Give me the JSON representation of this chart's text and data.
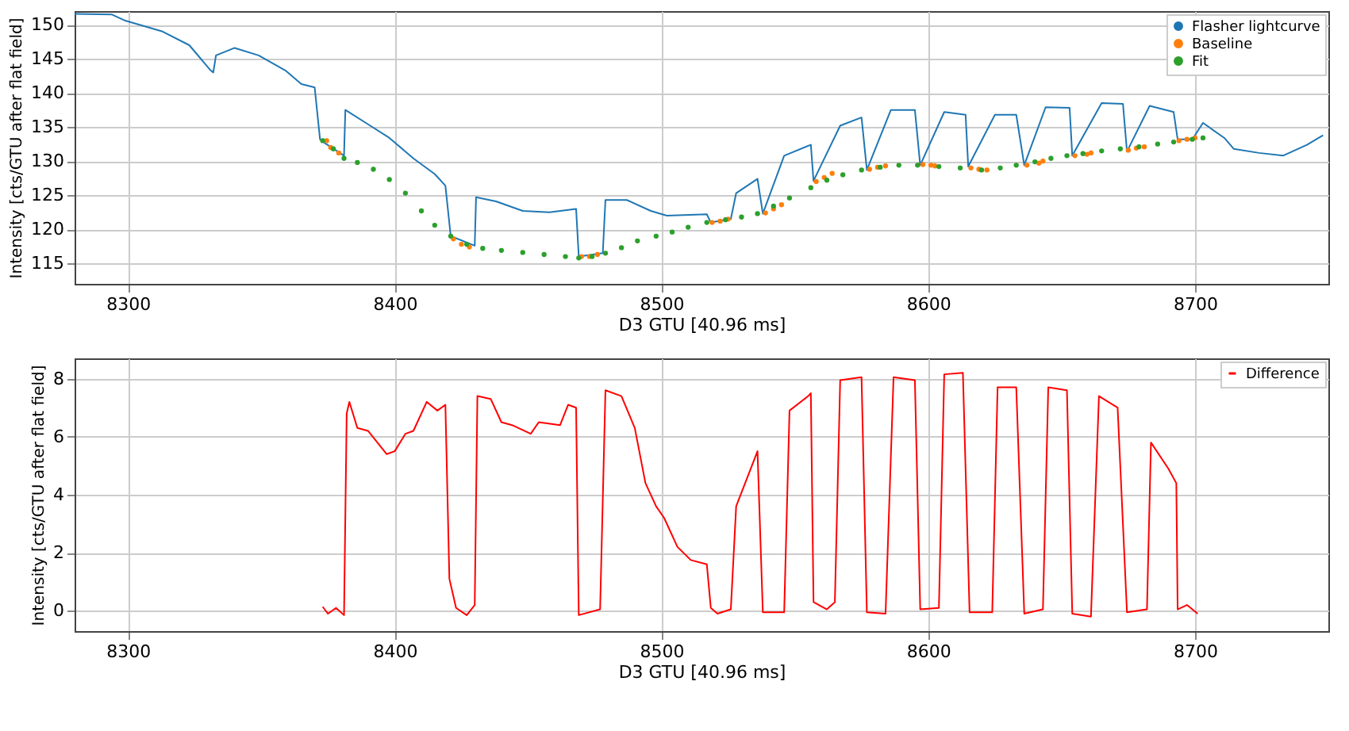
{
  "chart_data": [
    {
      "type": "line",
      "xlabel": "D3 GTU [40.96 ms]",
      "ylabel": "Intensity [cts/GTU after flat field]",
      "xlim": [
        8280,
        8750
      ],
      "ylim": [
        112,
        152
      ],
      "xticks": [
        8300,
        8400,
        8500,
        8600,
        8700
      ],
      "yticks": [
        115,
        120,
        125,
        130,
        135,
        140,
        145,
        150
      ],
      "grid": true,
      "legend": "top right",
      "series": [
        {
          "name": "Flasher lightcurve",
          "color": "#1f77b4",
          "x": [
            8280,
            8294,
            8299,
            8313,
            8323,
            8331,
            8332,
            8333,
            8340,
            8349,
            8359,
            8365,
            8370,
            8372,
            8374,
            8381,
            8381.5,
            8390,
            8398,
            8407,
            8415,
            8419,
            8421,
            8430,
            8430.5,
            8438,
            8448,
            8458,
            8468,
            8469,
            8478,
            8479,
            8487,
            8496,
            8502,
            8517,
            8518.5,
            8526,
            8528,
            8536,
            8538,
            8546,
            8556,
            8557,
            8567,
            8575,
            8577,
            8586,
            8595,
            8597,
            8606,
            8614,
            8615,
            8625,
            8633,
            8636,
            8644,
            8653,
            8654,
            8665,
            8673,
            8674.5,
            8683,
            8692,
            8693.5,
            8699,
            8703,
            8711,
            8714.5,
            8724,
            8733,
            8742,
            8748
          ],
          "values": [
            151.6,
            151.5,
            150.6,
            149,
            147,
            143.3,
            143,
            145.5,
            146.6,
            145.5,
            143.3,
            141.3,
            140.8,
            133.2,
            132.6,
            130.8,
            137.5,
            135.4,
            133.4,
            130.4,
            128.1,
            126.4,
            119,
            117.6,
            124.7,
            124.1,
            122.7,
            122.5,
            123,
            116,
            116.5,
            124.3,
            124.3,
            122.7,
            122,
            122.2,
            121,
            121.5,
            125.3,
            127.4,
            122.3,
            130.8,
            132.4,
            127.1,
            135.2,
            136.4,
            128.7,
            137.5,
            137.5,
            129.4,
            137.2,
            136.8,
            129.2,
            136.8,
            136.8,
            129.4,
            137.9,
            137.8,
            130.8,
            138.5,
            138.4,
            131.4,
            138.1,
            137.2,
            133.2,
            133.2,
            135.6,
            133.4,
            131.8,
            131.2,
            130.8,
            132.4,
            133.8
          ]
        },
        {
          "name": "Baseline",
          "type": "scatter",
          "color": "#ff7f0e",
          "marker": "circle",
          "x": [
            8374.5,
            8376,
            8379,
            8422,
            8425,
            8428,
            8470,
            8473,
            8476,
            8519,
            8522,
            8525,
            8539,
            8542,
            8545,
            8558,
            8561,
            8564,
            8578,
            8581,
            8584,
            8598,
            8601,
            8602.5,
            8616,
            8619,
            8622,
            8637,
            8641.5,
            8643,
            8655,
            8659.5,
            8661,
            8675,
            8678,
            8681,
            8694,
            8697,
            8700
          ],
          "values": [
            133,
            132,
            131.2,
            118.6,
            117.8,
            117.4,
            116,
            116,
            116.3,
            121,
            121.2,
            121.5,
            122.4,
            123,
            123.6,
            127,
            127.6,
            128.2,
            128.8,
            129.1,
            129.3,
            129.5,
            129.4,
            129.3,
            129,
            128.8,
            128.7,
            129.4,
            129.7,
            130,
            130.8,
            131,
            131.2,
            131.6,
            131.9,
            132.1,
            133,
            133.2,
            133.4
          ]
        },
        {
          "name": "Fit",
          "type": "scatter",
          "color": "#2ca02c",
          "marker": "circle",
          "x": [
            8373,
            8377,
            8381,
            8386,
            8392,
            8398,
            8404,
            8410,
            8415,
            8421,
            8427,
            8433,
            8440,
            8448,
            8456,
            8464,
            8469,
            8474,
            8479,
            8485,
            8491,
            8498,
            8504,
            8510,
            8517,
            8524,
            8530,
            8536,
            8542,
            8548,
            8556,
            8562,
            8568,
            8575,
            8582,
            8589,
            8596,
            8604,
            8612,
            8620,
            8627,
            8633,
            8640,
            8646,
            8652,
            8658,
            8665,
            8672,
            8679,
            8686,
            8692,
            8699,
            8703
          ],
          "values": [
            133,
            131.8,
            130.4,
            129.8,
            128.8,
            127.3,
            125.3,
            122.7,
            120.6,
            119,
            117.8,
            117.2,
            116.9,
            116.6,
            116.3,
            116,
            115.8,
            116,
            116.5,
            117.3,
            118.3,
            119,
            119.6,
            120.3,
            121,
            121.4,
            121.8,
            122.3,
            123.4,
            124.6,
            126.1,
            127.2,
            128,
            128.7,
            129.1,
            129.4,
            129.4,
            129.2,
            129,
            128.7,
            129,
            129.4,
            129.9,
            130.4,
            130.8,
            131.1,
            131.5,
            131.8,
            132.1,
            132.5,
            132.8,
            133.2,
            133.4
          ]
        }
      ]
    },
    {
      "type": "line",
      "xlabel": "D3 GTU [40.96 ms]",
      "ylabel": "Intensity [cts/GTU after flat field]",
      "xlim": [
        8280,
        8750
      ],
      "ylim": [
        -0.7,
        8.7
      ],
      "xticks": [
        8300,
        8400,
        8500,
        8600,
        8700
      ],
      "yticks": [
        0,
        2,
        4,
        6,
        8
      ],
      "grid": true,
      "legend": "top right",
      "series": [
        {
          "name": "Difference",
          "color": "#ff0000",
          "x": [
            8373,
            8375,
            8378,
            8381,
            8382,
            8383,
            8386,
            8390,
            8397,
            8400,
            8404,
            8407,
            8412,
            8416,
            8419,
            8420.5,
            8423,
            8427,
            8430,
            8431,
            8436,
            8440,
            8444,
            8451,
            8454,
            8462,
            8465,
            8468,
            8469,
            8477,
            8479,
            8485,
            8490,
            8494,
            8498,
            8501,
            8506,
            8511,
            8517,
            8518.5,
            8521,
            8526,
            8528,
            8536,
            8538,
            8546,
            8548,
            8555,
            8556,
            8557,
            8562,
            8565,
            8567,
            8575,
            8577,
            8584,
            8587,
            8595,
            8597,
            8604,
            8606,
            8613,
            8615.5,
            8624,
            8626,
            8633,
            8636,
            8643,
            8645,
            8652,
            8654,
            8661,
            8664,
            8671,
            8674.5,
            8682,
            8683.5,
            8690,
            8693,
            8693.5,
            8697,
            8701
          ],
          "values": [
            0.14,
            -0.1,
            0.1,
            -0.15,
            6.8,
            7.2,
            6.3,
            6.2,
            5.4,
            5.5,
            6.1,
            6.2,
            7.2,
            6.9,
            7.1,
            1.1,
            0.1,
            -0.15,
            0.2,
            7.4,
            7.3,
            6.5,
            6.4,
            6.1,
            6.5,
            6.4,
            7.1,
            7,
            -0.15,
            0.05,
            7.6,
            7.4,
            6.3,
            4.4,
            3.6,
            3.2,
            2.2,
            1.75,
            1.6,
            0.1,
            -0.1,
            0.05,
            3.6,
            5.5,
            -0.05,
            -0.05,
            6.9,
            7.4,
            7.5,
            0.3,
            0.05,
            0.3,
            7.95,
            8.05,
            -0.05,
            -0.1,
            8.05,
            7.95,
            0.05,
            0.1,
            8.15,
            8.2,
            -0.05,
            -0.05,
            7.7,
            7.7,
            -0.1,
            0.05,
            7.7,
            7.6,
            -0.1,
            -0.2,
            7.4,
            7,
            -0.05,
            0.05,
            5.8,
            4.9,
            4.4,
            0.05,
            0.2,
            -0.1
          ]
        }
      ]
    }
  ]
}
